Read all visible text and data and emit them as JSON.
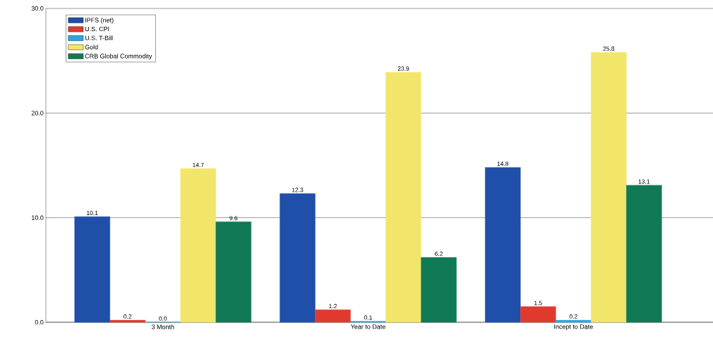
{
  "chart_data": {
    "type": "bar",
    "categories": [
      "3 Month",
      "Year to Date",
      "Incept to Date"
    ],
    "series": [
      {
        "name": "IPFS (net)",
        "color": "#1f4fa8",
        "values": [
          10.1,
          12.3,
          14.8
        ],
        "value_labels": [
          "10.1",
          "12.3",
          "14.8"
        ]
      },
      {
        "name": "U.S. CPI",
        "color": "#e03a2e",
        "values": [
          0.2,
          1.2,
          1.5
        ],
        "value_labels": [
          "0.2",
          "1.2",
          "1.5"
        ]
      },
      {
        "name": "U.S. T-Bill",
        "color": "#29a8e0",
        "values": [
          0.0,
          0.1,
          0.2
        ],
        "value_labels": [
          "0.0",
          "0.1",
          "0.2"
        ]
      },
      {
        "name": "Gold",
        "color": "#f2e66a",
        "values": [
          14.7,
          23.9,
          25.8
        ],
        "value_labels": [
          "14.7",
          "23.9",
          "25.8"
        ]
      },
      {
        "name": "CRB Global Commodity",
        "color": "#0f7a55",
        "values": [
          9.6,
          6.2,
          13.1
        ],
        "value_labels": [
          "9.6",
          "6.2",
          "13.1"
        ]
      }
    ],
    "ylim": [
      0,
      30
    ],
    "yticks": [
      {
        "value": 0,
        "label": "0.0"
      },
      {
        "value": 10,
        "label": "10.0"
      },
      {
        "value": 20,
        "label": "20.0"
      },
      {
        "value": 30,
        "label": "30.0"
      }
    ],
    "grid": "y",
    "legend": "top left"
  }
}
